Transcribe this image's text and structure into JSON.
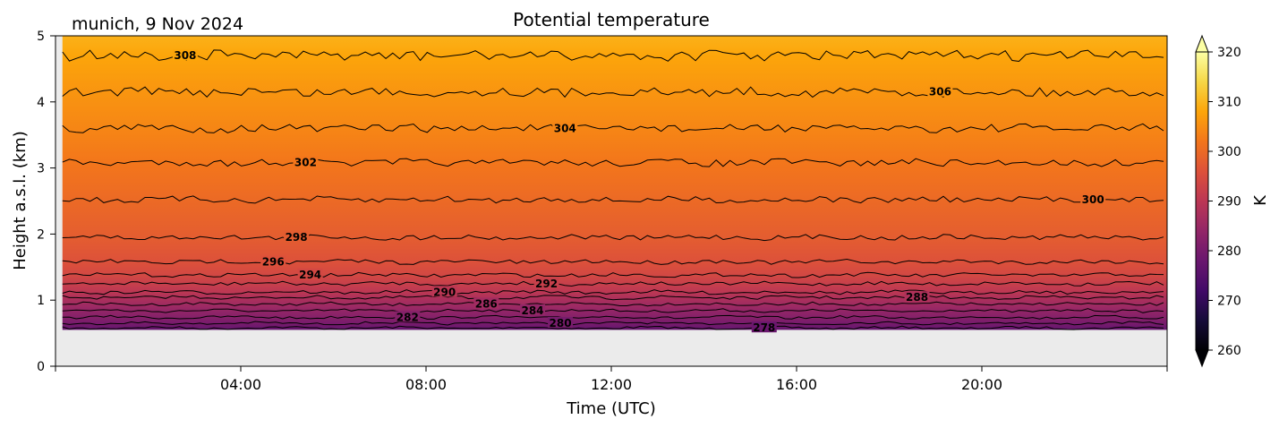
{
  "chart_data": {
    "type": "heatmap",
    "title": "Potential temperature",
    "subtitle": "munich, 9 Nov 2024",
    "xlabel": "Time (UTC)",
    "ylabel": "Height a.s.l. (km)",
    "x_ticks": [
      "04:00",
      "08:00",
      "12:00",
      "16:00",
      "20:00"
    ],
    "x_tick_hours": [
      4,
      8,
      12,
      16,
      20
    ],
    "xlim_hours": [
      0,
      24
    ],
    "y_ticks": [
      "0",
      "1",
      "2",
      "3",
      "4",
      "5"
    ],
    "ylim": [
      0,
      5
    ],
    "data_height_range_km": [
      0.55,
      5.0
    ],
    "colorbar": {
      "label": "K",
      "ticks": [
        "260",
        "270",
        "280",
        "290",
        "300",
        "310",
        "320"
      ],
      "range": [
        260,
        320
      ],
      "colormap": "inferno",
      "extend": "both"
    },
    "contour_levels": [
      {
        "value": 278,
        "height_km": 0.58,
        "label": "278",
        "label_hour": 15.3
      },
      {
        "value": 280,
        "height_km": 0.65,
        "label": "280",
        "label_hour": 10.9
      },
      {
        "value": 282,
        "height_km": 0.74,
        "label": "282",
        "label_hour": 7.6
      },
      {
        "value": 284,
        "height_km": 0.84,
        "label": "284",
        "label_hour": 10.3
      },
      {
        "value": 286,
        "height_km": 0.94,
        "label": "286",
        "label_hour": 9.3
      },
      {
        "value": 288,
        "height_km": 1.04,
        "label": "288",
        "label_hour": 18.6
      },
      {
        "value": 290,
        "height_km": 1.12,
        "label": "290",
        "label_hour": 8.4
      },
      {
        "value": 292,
        "height_km": 1.25,
        "label": "292",
        "label_hour": 10.6
      },
      {
        "value": 294,
        "height_km": 1.38,
        "label": "294",
        "label_hour": 5.5
      },
      {
        "value": 296,
        "height_km": 1.58,
        "label": "296",
        "label_hour": 4.7
      },
      {
        "value": 298,
        "height_km": 1.95,
        "label": "298",
        "label_hour": 5.2
      },
      {
        "value": 300,
        "height_km": 2.52,
        "label": "300",
        "label_hour": 22.4
      },
      {
        "value": 302,
        "height_km": 3.08,
        "label": "302",
        "label_hour": 5.4
      },
      {
        "value": 304,
        "height_km": 3.6,
        "label": "304",
        "label_hour": 11.0
      },
      {
        "value": 306,
        "height_km": 4.15,
        "label": "306",
        "label_hour": 19.1
      },
      {
        "value": 308,
        "height_km": 4.7,
        "label": "308",
        "label_hour": 2.8
      }
    ],
    "grid": false,
    "background_color": "#ebebeb"
  }
}
